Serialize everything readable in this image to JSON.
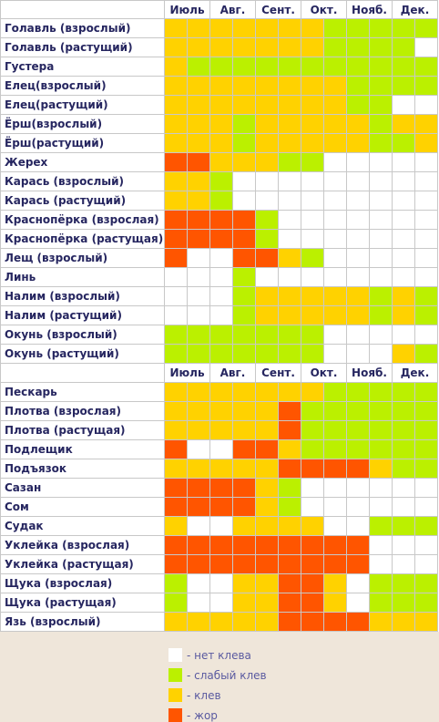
{
  "months": [
    "Июль",
    "Авг.",
    "Сент.",
    "Окт.",
    "Нояб.",
    "Дек."
  ],
  "sections": [
    {
      "rows": [
        {
          "label": "Голавль (взрослый)",
          "cells": [
            "#ffd200",
            "#ffd200",
            "#ffd200",
            "#ffd200",
            "#ffd200",
            "#ffd200",
            "#ffd200",
            "#bbf000",
            "#bbf000",
            "#bbf000",
            "#bbf000",
            "#bbf000"
          ]
        },
        {
          "label": "Голавль (растущий)",
          "cells": [
            "#ffd200",
            "#ffd200",
            "#ffd200",
            "#ffd200",
            "#ffd200",
            "#ffd200",
            "#ffd200",
            "#bbf000",
            "#bbf000",
            "#bbf000",
            "#bbf000",
            "#ffffff"
          ]
        },
        {
          "label": "Густера",
          "cells": [
            "#ffd200",
            "#bbf000",
            "#bbf000",
            "#bbf000",
            "#bbf000",
            "#bbf000",
            "#bbf000",
            "#bbf000",
            "#bbf000",
            "#bbf000",
            "#bbf000",
            "#bbf000"
          ]
        },
        {
          "label": "Елец(взрослый)",
          "cells": [
            "#ffd200",
            "#ffd200",
            "#ffd200",
            "#ffd200",
            "#ffd200",
            "#ffd200",
            "#ffd200",
            "#ffd200",
            "#bbf000",
            "#bbf000",
            "#bbf000",
            "#bbf000"
          ]
        },
        {
          "label": "Елец(растущий)",
          "cells": [
            "#ffd200",
            "#ffd200",
            "#ffd200",
            "#ffd200",
            "#ffd200",
            "#ffd200",
            "#ffd200",
            "#ffd200",
            "#bbf000",
            "#bbf000",
            "#ffffff",
            "#ffffff"
          ]
        },
        {
          "label": "Ёрш(взрослый)",
          "cells": [
            "#ffd200",
            "#ffd200",
            "#ffd200",
            "#bbf000",
            "#ffd200",
            "#ffd200",
            "#ffd200",
            "#ffd200",
            "#ffd200",
            "#bbf000",
            "#ffd200",
            "#ffd200"
          ]
        },
        {
          "label": "Ёрш(растущий)",
          "cells": [
            "#ffd200",
            "#ffd200",
            "#ffd200",
            "#bbf000",
            "#ffd200",
            "#ffd200",
            "#ffd200",
            "#ffd200",
            "#ffd200",
            "#bbf000",
            "#bbf000",
            "#ffd200"
          ]
        },
        {
          "label": "Жерех",
          "cells": [
            "#ff5500",
            "#ff5500",
            "#ffd200",
            "#ffd200",
            "#ffd200",
            "#bbf000",
            "#bbf000",
            "#ffffff",
            "#ffffff",
            "#ffffff",
            "#ffffff",
            "#ffffff"
          ]
        },
        {
          "label": "Карась (взрослый)",
          "cells": [
            "#ffd200",
            "#ffd200",
            "#bbf000",
            "#ffffff",
            "#ffffff",
            "#ffffff",
            "#ffffff",
            "#ffffff",
            "#ffffff",
            "#ffffff",
            "#ffffff",
            "#ffffff"
          ]
        },
        {
          "label": "Карась (растущий)",
          "cells": [
            "#ffd200",
            "#ffd200",
            "#bbf000",
            "#ffffff",
            "#ffffff",
            "#ffffff",
            "#ffffff",
            "#ffffff",
            "#ffffff",
            "#ffffff",
            "#ffffff",
            "#ffffff"
          ]
        },
        {
          "label": "Краснопёрка (взрослая)",
          "cells": [
            "#ff5500",
            "#ff5500",
            "#ff5500",
            "#ff5500",
            "#bbf000",
            "#ffffff",
            "#ffffff",
            "#ffffff",
            "#ffffff",
            "#ffffff",
            "#ffffff",
            "#ffffff"
          ]
        },
        {
          "label": "Краснопёрка (растущая)",
          "cells": [
            "#ff5500",
            "#ff5500",
            "#ff5500",
            "#ff5500",
            "#bbf000",
            "#ffffff",
            "#ffffff",
            "#ffffff",
            "#ffffff",
            "#ffffff",
            "#ffffff",
            "#ffffff"
          ]
        },
        {
          "label": "Лещ (взрослый)",
          "cells": [
            "#ff5500",
            "#ffffff",
            "#ffffff",
            "#ff5500",
            "#ff5500",
            "#ffd200",
            "#bbf000",
            "#ffffff",
            "#ffffff",
            "#ffffff",
            "#ffffff",
            "#ffffff"
          ]
        },
        {
          "label": "Линь",
          "cells": [
            "#ffffff",
            "#ffffff",
            "#ffffff",
            "#bbf000",
            "#ffffff",
            "#ffffff",
            "#ffffff",
            "#ffffff",
            "#ffffff",
            "#ffffff",
            "#ffffff",
            "#ffffff"
          ]
        },
        {
          "label": "Налим (взрослый)",
          "cells": [
            "#ffffff",
            "#ffffff",
            "#ffffff",
            "#bbf000",
            "#ffd200",
            "#ffd200",
            "#ffd200",
            "#ffd200",
            "#ffd200",
            "#bbf000",
            "#ffd200",
            "#bbf000"
          ]
        },
        {
          "label": "Налим (растущий)",
          "cells": [
            "#ffffff",
            "#ffffff",
            "#ffffff",
            "#bbf000",
            "#ffd200",
            "#ffd200",
            "#ffd200",
            "#ffd200",
            "#ffd200",
            "#bbf000",
            "#ffd200",
            "#bbf000"
          ]
        },
        {
          "label": "Окунь (взрослый)",
          "cells": [
            "#bbf000",
            "#bbf000",
            "#bbf000",
            "#bbf000",
            "#bbf000",
            "#bbf000",
            "#bbf000",
            "#ffffff",
            "#ffffff",
            "#ffffff",
            "#ffffff",
            "#ffffff"
          ]
        },
        {
          "label": "Окунь (растущий)",
          "cells": [
            "#bbf000",
            "#bbf000",
            "#bbf000",
            "#bbf000",
            "#bbf000",
            "#bbf000",
            "#bbf000",
            "#ffffff",
            "#ffffff",
            "#ffffff",
            "#ffd200",
            "#bbf000"
          ]
        }
      ]
    },
    {
      "rows": [
        {
          "label": "Пескарь",
          "cells": [
            "#ffd200",
            "#ffd200",
            "#ffd200",
            "#ffd200",
            "#ffd200",
            "#ffd200",
            "#ffd200",
            "#bbf000",
            "#bbf000",
            "#bbf000",
            "#bbf000",
            "#bbf000"
          ]
        },
        {
          "label": "Плотва (взрослая)",
          "cells": [
            "#ffd200",
            "#ffd200",
            "#ffd200",
            "#ffd200",
            "#ffd200",
            "#ff5500",
            "#bbf000",
            "#bbf000",
            "#bbf000",
            "#bbf000",
            "#bbf000",
            "#bbf000"
          ]
        },
        {
          "label": "Плотва (растущая)",
          "cells": [
            "#ffd200",
            "#ffd200",
            "#ffd200",
            "#ffd200",
            "#ffd200",
            "#ff5500",
            "#bbf000",
            "#bbf000",
            "#bbf000",
            "#bbf000",
            "#bbf000",
            "#bbf000"
          ]
        },
        {
          "label": "Подлещик",
          "cells": [
            "#ff5500",
            "#ffffff",
            "#ffffff",
            "#ff5500",
            "#ff5500",
            "#ffd200",
            "#bbf000",
            "#bbf000",
            "#bbf000",
            "#bbf000",
            "#bbf000",
            "#bbf000"
          ]
        },
        {
          "label": "Подъязок",
          "cells": [
            "#ffd200",
            "#ffd200",
            "#ffd200",
            "#ffd200",
            "#ffd200",
            "#ff5500",
            "#ff5500",
            "#ff5500",
            "#ff5500",
            "#ffd200",
            "#bbf000",
            "#bbf000"
          ]
        },
        {
          "label": "Сазан",
          "cells": [
            "#ff5500",
            "#ff5500",
            "#ff5500",
            "#ff5500",
            "#ffd200",
            "#bbf000",
            "#ffffff",
            "#ffffff",
            "#ffffff",
            "#ffffff",
            "#ffffff",
            "#ffffff"
          ]
        },
        {
          "label": "Сом",
          "cells": [
            "#ff5500",
            "#ff5500",
            "#ff5500",
            "#ff5500",
            "#ffd200",
            "#bbf000",
            "#ffffff",
            "#ffffff",
            "#ffffff",
            "#ffffff",
            "#ffffff",
            "#ffffff"
          ]
        },
        {
          "label": "Судак",
          "cells": [
            "#ffd200",
            "#ffffff",
            "#ffffff",
            "#ffd200",
            "#ffd200",
            "#ffd200",
            "#ffd200",
            "#ffffff",
            "#ffffff",
            "#bbf000",
            "#bbf000",
            "#bbf000"
          ]
        },
        {
          "label": "Уклейка (взрослая)",
          "cells": [
            "#ff5500",
            "#ff5500",
            "#ff5500",
            "#ff5500",
            "#ff5500",
            "#ff5500",
            "#ff5500",
            "#ff5500",
            "#ff5500",
            "#ffffff",
            "#ffffff",
            "#ffffff"
          ]
        },
        {
          "label": "Уклейка (растущая)",
          "cells": [
            "#ff5500",
            "#ff5500",
            "#ff5500",
            "#ff5500",
            "#ff5500",
            "#ff5500",
            "#ff5500",
            "#ff5500",
            "#ff5500",
            "#ffffff",
            "#ffffff",
            "#ffffff"
          ]
        },
        {
          "label": "Щука (взрослая)",
          "cells": [
            "#bbf000",
            "#ffffff",
            "#ffffff",
            "#ffd200",
            "#ffd200",
            "#ff5500",
            "#ff5500",
            "#ffd200",
            "#ffffff",
            "#bbf000",
            "#bbf000",
            "#bbf000"
          ]
        },
        {
          "label": "Щука (растущая)",
          "cells": [
            "#bbf000",
            "#ffffff",
            "#ffffff",
            "#ffd200",
            "#ffd200",
            "#ff5500",
            "#ff5500",
            "#ffd200",
            "#ffffff",
            "#bbf000",
            "#bbf000",
            "#bbf000"
          ]
        },
        {
          "label": "Язь (взрослый)",
          "cells": [
            "#ffd200",
            "#ffd200",
            "#ffd200",
            "#ffd200",
            "#ffd200",
            "#ff5500",
            "#ff5500",
            "#ff5500",
            "#ff5500",
            "#ffd200",
            "#ffd200",
            "#ffd200"
          ]
        }
      ]
    }
  ],
  "legend": [
    {
      "color": "#ffffff",
      "label": "- нет клева"
    },
    {
      "color": "#bbf000",
      "label": "- слабый клев"
    },
    {
      "color": "#ffd200",
      "label": "- клев"
    },
    {
      "color": "#ff5500",
      "label": "- жор"
    }
  ]
}
